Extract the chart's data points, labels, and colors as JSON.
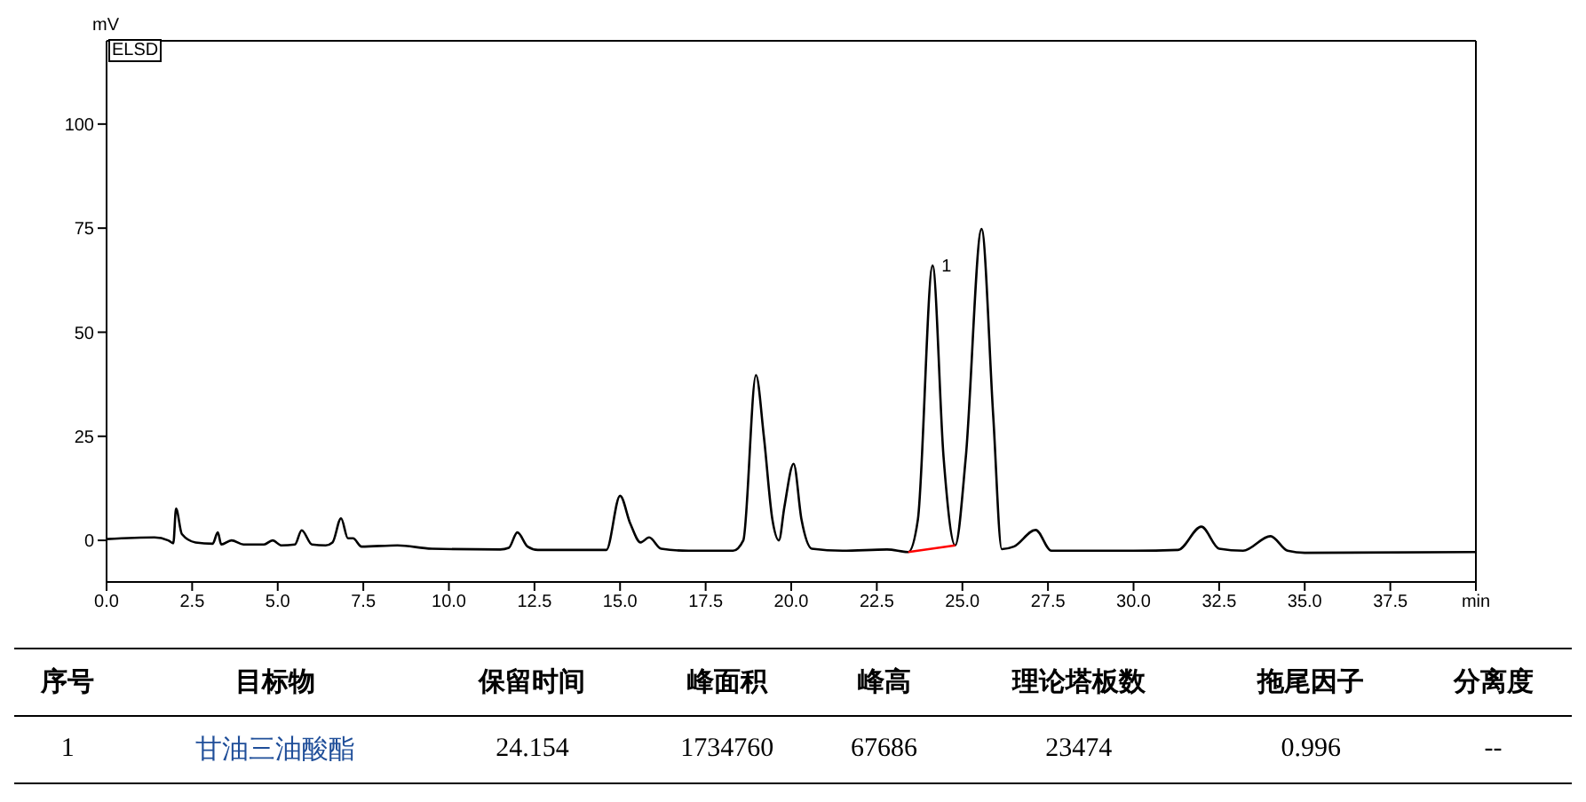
{
  "chart_data": {
    "type": "line",
    "ylabel": "mV",
    "xlim": [
      0,
      40
    ],
    "ylim": [
      -10,
      120
    ],
    "xticks": [
      {
        "value": 0,
        "label": "0.0"
      },
      {
        "value": 2.5,
        "label": "2.5"
      },
      {
        "value": 5,
        "label": "5.0"
      },
      {
        "value": 7.5,
        "label": "7.5"
      },
      {
        "value": 10,
        "label": "10.0"
      },
      {
        "value": 12.5,
        "label": "12.5"
      },
      {
        "value": 15,
        "label": "15.0"
      },
      {
        "value": 17.5,
        "label": "17.5"
      },
      {
        "value": 20,
        "label": "20.0"
      },
      {
        "value": 22.5,
        "label": "22.5"
      },
      {
        "value": 25,
        "label": "25.0"
      },
      {
        "value": 27.5,
        "label": "27.5"
      },
      {
        "value": 30,
        "label": "30.0"
      },
      {
        "value": 32.5,
        "label": "32.5"
      },
      {
        "value": 35,
        "label": "35.0"
      },
      {
        "value": 37.5,
        "label": "37.5"
      },
      {
        "value": 40,
        "label": "min"
      }
    ],
    "yticks": [
      0,
      25,
      50,
      75,
      100
    ],
    "marker": "none",
    "line_style": "solid",
    "series": [
      {
        "color": "#000000",
        "x": [
          0,
          1.4,
          1.8,
          1.95,
          2.03,
          2.2,
          2.6,
          3.1,
          3.25,
          3.35,
          3.65,
          4.0,
          4.6,
          4.85,
          5.1,
          5.5,
          5.7,
          6.0,
          6.4,
          6.6,
          6.85,
          7.05,
          7.2,
          7.45,
          8.5,
          9.5,
          11.5,
          11.75,
          12.0,
          12.3,
          12.6,
          14.6,
          15.0,
          15.3,
          15.6,
          15.85,
          16.2,
          17.0,
          18.3,
          18.6,
          18.97,
          19.2,
          19.45,
          19.64,
          19.8,
          20.07,
          20.3,
          20.6,
          21.5,
          22.8,
          23.42,
          23.7,
          24.13,
          24.45,
          24.79,
          25.1,
          25.56,
          25.9,
          26.15,
          26.5,
          27.14,
          27.6,
          28.5,
          30.0,
          31.3,
          31.98,
          32.5,
          33.2,
          34.0,
          34.5,
          35.0,
          40
        ],
        "values": [
          0.3,
          0.7,
          0,
          -0.7,
          7.6,
          1.5,
          -0.5,
          -0.8,
          1.9,
          -1,
          0,
          -1,
          -1,
          0,
          -1.2,
          -1,
          2.4,
          -1,
          -1.2,
          -0.5,
          5.3,
          0.5,
          0.5,
          -1.5,
          -1.2,
          -2,
          -2.2,
          -1.8,
          1.9,
          -1.5,
          -2.3,
          -2.3,
          10.7,
          4,
          -0.5,
          0.7,
          -2,
          -2.5,
          -2.5,
          0,
          39.7,
          25,
          5,
          0,
          8,
          18.4,
          5,
          -2,
          -2.5,
          -2.2,
          -2.8,
          5,
          66,
          20,
          -1.2,
          20,
          74.8,
          30,
          -2.1,
          -1.5,
          2.5,
          -2.5,
          -2.5,
          -2.5,
          -2.3,
          3.3,
          -2,
          -2.5,
          1,
          -2.5,
          -3,
          -2.8
        ]
      },
      {
        "color": "#ff0000",
        "x": [
          23.42,
          24.79
        ],
        "values": [
          -2.8,
          -1.2
        ]
      }
    ],
    "annotations": [
      "ELSD",
      {
        "text": "1",
        "x": 24.13,
        "y": 66
      },
      "序号",
      "目标物",
      "保留时间",
      "峰面积",
      "峰高",
      "理论塔板数",
      "拖尾因子",
      "分离度",
      "1",
      "甘油三油酸酯",
      "24.154",
      "1734760",
      "67686",
      "23474",
      "0.996",
      "--"
    ]
  }
}
